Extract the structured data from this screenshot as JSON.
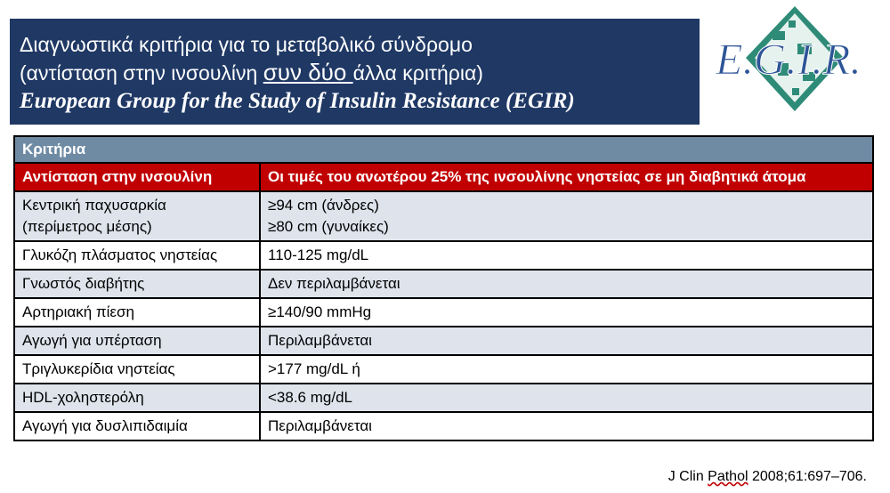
{
  "title": {
    "line1": "Διαγνωστικά κριτήρια για το μεταβολικό σύνδρομο",
    "line2_before": "(αντίσταση στην ινσουλίνη ",
    "line2_emph": "συν δύο ",
    "line2_after": "άλλα κριτήρια)",
    "line3": "European Group for the Study of Insulin Resistance (EGIR)"
  },
  "logo": {
    "text": "E.G.I.R."
  },
  "table": {
    "header": "Κριτήρια",
    "key_row": {
      "criterion": "Αντίσταση στην ινσουλίνη",
      "value": "Οι τιμές του ανωτέρου 25% της ινσουλίνης νηστείας σε μη διαβητικά άτομα"
    },
    "rows": [
      {
        "criterion_line1": "Κεντρική παχυσαρκία",
        "criterion_line2": "(περίμετρος μέσης)",
        "value_line1": "≥94 cm (άνδρες)",
        "value_line2": "≥80 cm (γυναίκες)"
      },
      {
        "criterion": "Γλυκόζη πλάσματος νηστείας",
        "value": "110-125 mg/dL"
      },
      {
        "criterion": "Γνωστός διαβήτης",
        "value": "Δεν περιλαμβάνεται"
      },
      {
        "criterion": "Αρτηριακή πίεση",
        "value": "≥140/90 mmHg"
      },
      {
        "criterion": "Αγωγή για υπέρταση",
        "value": "Περιλαμβάνεται"
      },
      {
        "criterion": "Τριγλυκερίδια νηστείας",
        "value": ">177 mg/dL ή"
      },
      {
        "criterion": "HDL-χοληστερόλη",
        "value": "<38.6 mg/dL"
      },
      {
        "criterion": "Αγωγή για δυσλιπιδαιμία",
        "value": "Περιλαμβάνεται"
      }
    ]
  },
  "citation": {
    "prefix": "J Clin ",
    "journal": "Pathol",
    "suffix": " 2008;61:697–706."
  }
}
